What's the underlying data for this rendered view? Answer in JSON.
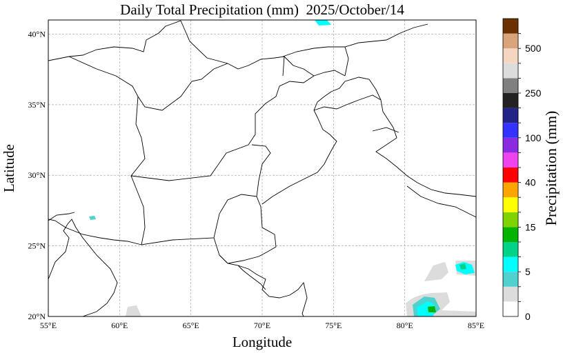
{
  "title": "Daily Total Precipitation (mm)  2025/October/14",
  "axes": {
    "xlabel": "Longitude",
    "ylabel": "Latitude",
    "lon_range": [
      55,
      85
    ],
    "lat_range": [
      20,
      41
    ],
    "lon_ticks": [
      55,
      60,
      65,
      70,
      75,
      80,
      85
    ],
    "lat_ticks": [
      20,
      25,
      30,
      35,
      40
    ],
    "lon_tick_labels": [
      "55°E",
      "60°E",
      "65°E",
      "70°E",
      "75°E",
      "80°E",
      "85°E"
    ],
    "lat_tick_labels": [
      "20°N",
      "25°N",
      "30°N",
      "35°N",
      "40°N"
    ],
    "grid": true
  },
  "colorbar": {
    "label": "Precipitation (mm)",
    "colors": [
      "#ffffff",
      "#dcdcdc",
      "#4fd1cf",
      "#00ffff",
      "#00d28a",
      "#00b400",
      "#7fd400",
      "#ffff00",
      "#ffa500",
      "#ff0000",
      "#ee44ee",
      "#8a2be2",
      "#3333ff",
      "#222288",
      "#222222",
      "#808080",
      "#dcdcdc",
      "#f5d6c0",
      "#d9a47a",
      "#6b3200"
    ],
    "tick_labels": [
      "0",
      "5",
      "15",
      "40",
      "100",
      "250",
      "500"
    ],
    "tick_levels": [
      0,
      3,
      6,
      9,
      12,
      15,
      18
    ]
  },
  "precip_patches": [
    {
      "lon": 81.9,
      "lat": 20.4,
      "level_index": 5
    },
    {
      "lon": 81.5,
      "lat": 20.6,
      "level_index": 3
    },
    {
      "lon": 84.3,
      "lat": 23.4,
      "level_index": 3
    },
    {
      "lon": 84.0,
      "lat": 23.4,
      "level_index": 4
    },
    {
      "lon": 58.1,
      "lat": 26.9,
      "level_index": 3
    },
    {
      "lon": 74.8,
      "lat": 41.0,
      "level_index": 3
    },
    {
      "lon": 81.0,
      "lat": 20.8,
      "level_index": 1
    },
    {
      "lon": 83.5,
      "lat": 22.8,
      "level_index": 1
    },
    {
      "lon": 61.2,
      "lat": 20.2,
      "level_index": 1
    }
  ]
}
